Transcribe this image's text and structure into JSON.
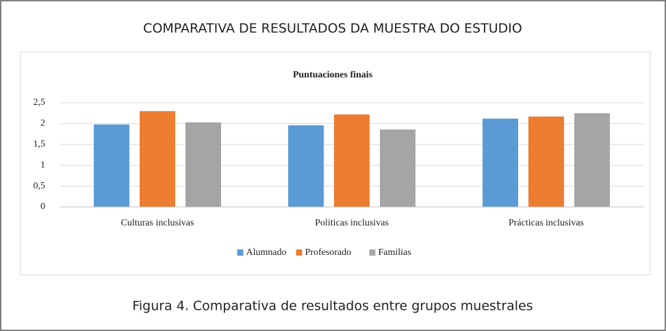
{
  "heading": "COMPARATIVA DE RESULTADOS DA MUESTRA DO ESTUDIO",
  "caption": "Figura 4. Comparativa de resultados entre grupos muestrales",
  "chart_data": {
    "type": "bar",
    "title": "Puntuaciones finais",
    "categories": [
      "Culturas inclusivas",
      "Políticas inclusivas",
      "Prácticas inclusivas"
    ],
    "series": [
      {
        "name": "Alumnado",
        "color": "#5b9bd5",
        "values": [
          1.98,
          1.96,
          2.12
        ]
      },
      {
        "name": "Profesorado",
        "color": "#ed7d31",
        "values": [
          2.3,
          2.22,
          2.17
        ]
      },
      {
        "name": "Familias",
        "color": "#a5a5a5",
        "values": [
          2.03,
          1.86,
          2.25
        ]
      }
    ],
    "ylim": [
      0,
      2.5
    ],
    "yticks": [
      0,
      {
        "value": 0.5,
        "label": "0,5"
      },
      1,
      {
        "value": 1.5,
        "label": "1,5"
      },
      2,
      {
        "value": 2.5,
        "label": "2,5"
      }
    ],
    "grid": true,
    "legend": "bottom"
  }
}
